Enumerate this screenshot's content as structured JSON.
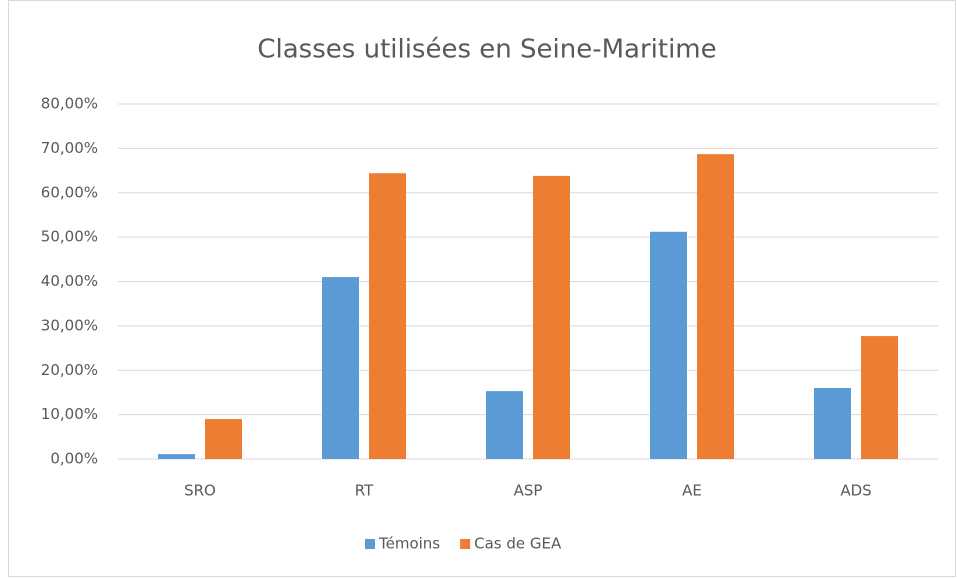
{
  "chart_data": {
    "type": "bar",
    "title": "Classes utilisées en Seine-Maritime",
    "categories": [
      "SRO",
      "RT",
      "ASP",
      "AE",
      "ADS"
    ],
    "series": [
      {
        "name": "Témoins",
        "color": "#5b9bd5",
        "values": [
          1.1,
          41.0,
          15.3,
          51.2,
          16.0
        ]
      },
      {
        "name": "Cas de GEA",
        "color": "#ed7d31",
        "values": [
          9.0,
          64.4,
          63.8,
          68.7,
          27.7
        ]
      }
    ],
    "ylim": [
      0,
      80
    ],
    "yticks": [
      {
        "value": 0,
        "label": "0,00%"
      },
      {
        "value": 10,
        "label": "10,00%"
      },
      {
        "value": 20,
        "label": "20,00%"
      },
      {
        "value": 30,
        "label": "30,00%"
      },
      {
        "value": 40,
        "label": "40,00%"
      },
      {
        "value": 50,
        "label": "50,00%"
      },
      {
        "value": 60,
        "label": "60,00%"
      },
      {
        "value": 70,
        "label": "70,00%"
      },
      {
        "value": 80,
        "label": "80,00%"
      }
    ],
    "grid": true,
    "legend": "bottom"
  }
}
